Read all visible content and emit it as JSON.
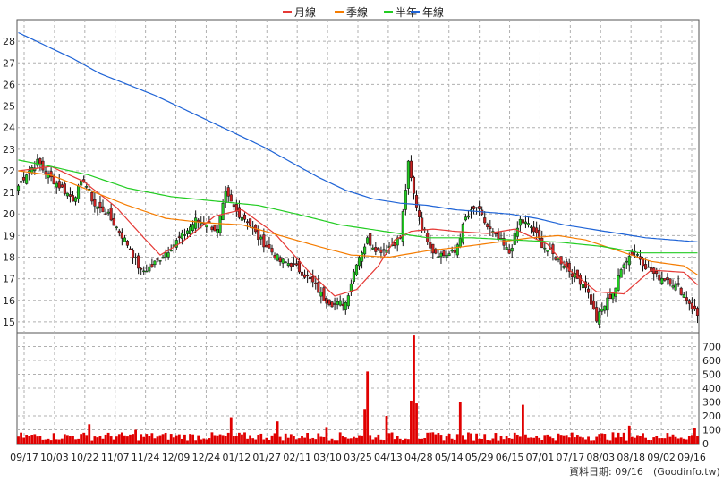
{
  "chart_data": [
    {
      "type": "candlestick",
      "title": "",
      "legend": {
        "placement": "top-center",
        "items": [
          {
            "label": "月線",
            "color": "#e53935"
          },
          {
            "label": "季線",
            "color": "#f57c00"
          },
          {
            "label": "半年",
            "color": "#22cc22"
          },
          {
            "label": "年線",
            "color": "#1e63d6"
          }
        ]
      },
      "y_axis": {
        "side": "left",
        "ylim": [
          14.5,
          29
        ],
        "ticks": [
          15,
          16,
          17,
          18,
          19,
          20,
          21,
          22,
          23,
          24,
          25,
          26,
          27,
          28
        ]
      },
      "x_tick_labels": [
        "09/17",
        "10/03",
        "10/22",
        "11/07",
        "11/24",
        "12/09",
        "12/24",
        "01/12",
        "01/27",
        "02/11",
        "03/10",
        "03/25",
        "04/13",
        "04/28",
        "05/14",
        "05/29",
        "06/15",
        "07/01",
        "07/17",
        "08/03",
        "08/18",
        "09/02",
        "09/16"
      ],
      "grid": true,
      "up_color": "#22cc22",
      "down_color": "#cc2222",
      "price_anchors": [
        [
          0,
          21.3
        ],
        [
          3,
          21.9
        ],
        [
          7,
          22.4
        ],
        [
          10,
          21.9
        ],
        [
          15,
          21.3
        ],
        [
          20,
          20.7
        ],
        [
          24,
          21.6
        ],
        [
          28,
          20.4
        ],
        [
          32,
          20.1
        ],
        [
          37,
          19.2
        ],
        [
          41,
          18.4
        ],
        [
          45,
          17.3
        ],
        [
          49,
          17.6
        ],
        [
          53,
          18.1
        ],
        [
          57,
          18.6
        ],
        [
          61,
          19.1
        ],
        [
          65,
          19.7
        ],
        [
          69,
          19.6
        ],
        [
          73,
          19.2
        ],
        [
          76,
          20.9
        ],
        [
          80,
          20.1
        ],
        [
          84,
          19.7
        ],
        [
          88,
          18.9
        ],
        [
          92,
          18.4
        ],
        [
          96,
          17.8
        ],
        [
          100,
          17.7
        ],
        [
          104,
          17.3
        ],
        [
          108,
          16.8
        ],
        [
          112,
          16.1
        ],
        [
          116,
          15.8
        ],
        [
          120,
          15.9
        ],
        [
          124,
          17.8
        ],
        [
          128,
          18.8
        ],
        [
          132,
          18.3
        ],
        [
          136,
          18.5
        ],
        [
          140,
          18.9
        ],
        [
          143,
          22.3
        ],
        [
          145,
          20.9
        ],
        [
          148,
          19.4
        ],
        [
          152,
          18.3
        ],
        [
          156,
          18.1
        ],
        [
          160,
          18.2
        ],
        [
          164,
          19.8
        ],
        [
          168,
          20.3
        ],
        [
          172,
          19.4
        ],
        [
          176,
          18.8
        ],
        [
          180,
          18.2
        ],
        [
          184,
          19.7
        ],
        [
          188,
          19.4
        ],
        [
          192,
          18.6
        ],
        [
          196,
          18.1
        ],
        [
          200,
          17.7
        ],
        [
          204,
          17.1
        ],
        [
          208,
          16.7
        ],
        [
          212,
          15.1
        ],
        [
          216,
          16.0
        ],
        [
          219,
          16.6
        ],
        [
          222,
          17.8
        ],
        [
          226,
          18.3
        ],
        [
          230,
          17.6
        ],
        [
          234,
          17.1
        ],
        [
          238,
          17.0
        ],
        [
          242,
          16.6
        ],
        [
          246,
          15.9
        ],
        [
          250,
          15.1
        ]
      ],
      "moving_average_anchors": {
        "月線": [
          [
            0,
            22.0
          ],
          [
            12,
            22.2
          ],
          [
            24,
            21.5
          ],
          [
            36,
            20.3
          ],
          [
            46,
            18.9
          ],
          [
            52,
            18.1
          ],
          [
            60,
            18.7
          ],
          [
            72,
            19.9
          ],
          [
            82,
            20.2
          ],
          [
            94,
            19.1
          ],
          [
            106,
            17.4
          ],
          [
            116,
            16.2
          ],
          [
            124,
            16.5
          ],
          [
            132,
            17.6
          ],
          [
            138,
            18.8
          ],
          [
            144,
            19.2
          ],
          [
            152,
            19.3
          ],
          [
            160,
            19.2
          ],
          [
            172,
            19.1
          ],
          [
            182,
            19.3
          ],
          [
            194,
            18.6
          ],
          [
            202,
            17.4
          ],
          [
            212,
            16.4
          ],
          [
            222,
            16.3
          ],
          [
            232,
            17.4
          ],
          [
            244,
            17.3
          ],
          [
            250,
            16.6
          ]
        ],
        "季線": [
          [
            0,
            22.0
          ],
          [
            12,
            21.8
          ],
          [
            24,
            21.2
          ],
          [
            40,
            20.4
          ],
          [
            54,
            19.8
          ],
          [
            68,
            19.6
          ],
          [
            82,
            19.5
          ],
          [
            96,
            19.0
          ],
          [
            110,
            18.5
          ],
          [
            122,
            18.1
          ],
          [
            136,
            18.0
          ],
          [
            150,
            18.3
          ],
          [
            164,
            18.5
          ],
          [
            176,
            18.7
          ],
          [
            188,
            18.9
          ],
          [
            198,
            19.0
          ],
          [
            208,
            18.8
          ],
          [
            220,
            18.3
          ],
          [
            232,
            17.8
          ],
          [
            244,
            17.6
          ],
          [
            250,
            17.1
          ]
        ],
        "半年": [
          [
            0,
            22.5
          ],
          [
            12,
            22.2
          ],
          [
            26,
            21.8
          ],
          [
            40,
            21.2
          ],
          [
            56,
            20.8
          ],
          [
            72,
            20.6
          ],
          [
            88,
            20.4
          ],
          [
            102,
            20.0
          ],
          [
            118,
            19.5
          ],
          [
            134,
            19.2
          ],
          [
            150,
            18.9
          ],
          [
            166,
            18.9
          ],
          [
            182,
            18.8
          ],
          [
            198,
            18.7
          ],
          [
            214,
            18.5
          ],
          [
            228,
            18.2
          ],
          [
            240,
            18.2
          ],
          [
            250,
            18.2
          ]
        ],
        "年線": [
          [
            0,
            28.4
          ],
          [
            10,
            27.8
          ],
          [
            20,
            27.2
          ],
          [
            30,
            26.5
          ],
          [
            40,
            26.0
          ],
          [
            50,
            25.5
          ],
          [
            60,
            24.9
          ],
          [
            70,
            24.3
          ],
          [
            80,
            23.7
          ],
          [
            90,
            23.1
          ],
          [
            100,
            22.4
          ],
          [
            110,
            21.7
          ],
          [
            120,
            21.1
          ],
          [
            130,
            20.7
          ],
          [
            140,
            20.5
          ],
          [
            150,
            20.4
          ],
          [
            160,
            20.2
          ],
          [
            170,
            20.1
          ],
          [
            180,
            20.0
          ],
          [
            190,
            19.8
          ],
          [
            200,
            19.5
          ],
          [
            210,
            19.3
          ],
          [
            220,
            19.1
          ],
          [
            230,
            18.9
          ],
          [
            240,
            18.8
          ],
          [
            250,
            18.7
          ]
        ]
      },
      "trading_days": 250
    },
    {
      "type": "bar",
      "y_axis": {
        "side": "right",
        "ylim": [
          0,
          800
        ],
        "ticks": [
          0,
          100,
          200,
          300,
          400,
          500,
          600,
          700
        ]
      },
      "color": "#e00000",
      "base_volume": 55,
      "volume_spikes": [
        [
          26,
          140
        ],
        [
          43,
          100
        ],
        [
          78,
          190
        ],
        [
          95,
          160
        ],
        [
          113,
          120
        ],
        [
          127,
          250
        ],
        [
          128,
          520
        ],
        [
          135,
          200
        ],
        [
          144,
          310
        ],
        [
          145,
          780
        ],
        [
          146,
          290
        ],
        [
          162,
          300
        ],
        [
          185,
          280
        ],
        [
          224,
          130
        ],
        [
          248,
          110
        ]
      ]
    }
  ],
  "footer": {
    "label": "資料日期: 09/16",
    "site": "(Goodinfo.tw)"
  }
}
